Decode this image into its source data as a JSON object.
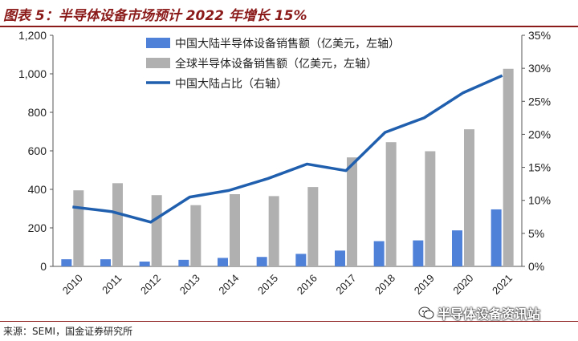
{
  "header": {
    "title": "图表 5：半导体设备市场预计 2022 年增长 15%"
  },
  "footer": {
    "source": "来源：SEMI，国金证券研究所",
    "watermark": "半导体设备资讯站"
  },
  "colors": {
    "china_bar": "#4f81d9",
    "global_bar": "#b0b0b0",
    "share_line": "#1f5fae",
    "axis": "#555555",
    "title": "#8b1a1a"
  },
  "chart_data": {
    "type": "bar",
    "categories": [
      "2010",
      "2011",
      "2012",
      "2013",
      "2014",
      "2015",
      "2016",
      "2017",
      "2018",
      "2019",
      "2020",
      "2021"
    ],
    "series": [
      {
        "name": "中国大陆半导体设备销售额（亿美元，左轴）",
        "type": "bar",
        "axis": "left",
        "values": [
          37,
          37,
          25,
          34,
          44,
          49,
          65,
          82,
          131,
          135,
          187,
          296
        ]
      },
      {
        "name": "全球半导体设备销售额（亿美元，左轴）",
        "type": "bar",
        "axis": "left",
        "values": [
          395,
          432,
          370,
          318,
          375,
          365,
          412,
          566,
          645,
          598,
          712,
          1026
        ]
      },
      {
        "name": "中国大陆占比（右轴）",
        "type": "line",
        "axis": "right",
        "values": [
          9.0,
          8.3,
          6.7,
          10.5,
          11.5,
          13.3,
          15.5,
          14.5,
          20.3,
          22.5,
          26.3,
          28.9
        ]
      }
    ],
    "y_left": {
      "min": 0,
      "max": 1200,
      "ticks": [
        0,
        200,
        400,
        600,
        800,
        1000,
        1200
      ],
      "tick_labels": [
        "0",
        "200",
        "400",
        "600",
        "800",
        "1,000",
        "1,200"
      ]
    },
    "y_right": {
      "min": 0,
      "max": 35,
      "ticks": [
        0,
        5,
        10,
        15,
        20,
        25,
        30,
        35
      ],
      "tick_labels": [
        "0%",
        "5%",
        "10%",
        "15%",
        "20%",
        "25%",
        "30%",
        "35%"
      ]
    },
    "legend_position": "top-left",
    "grid": false
  }
}
